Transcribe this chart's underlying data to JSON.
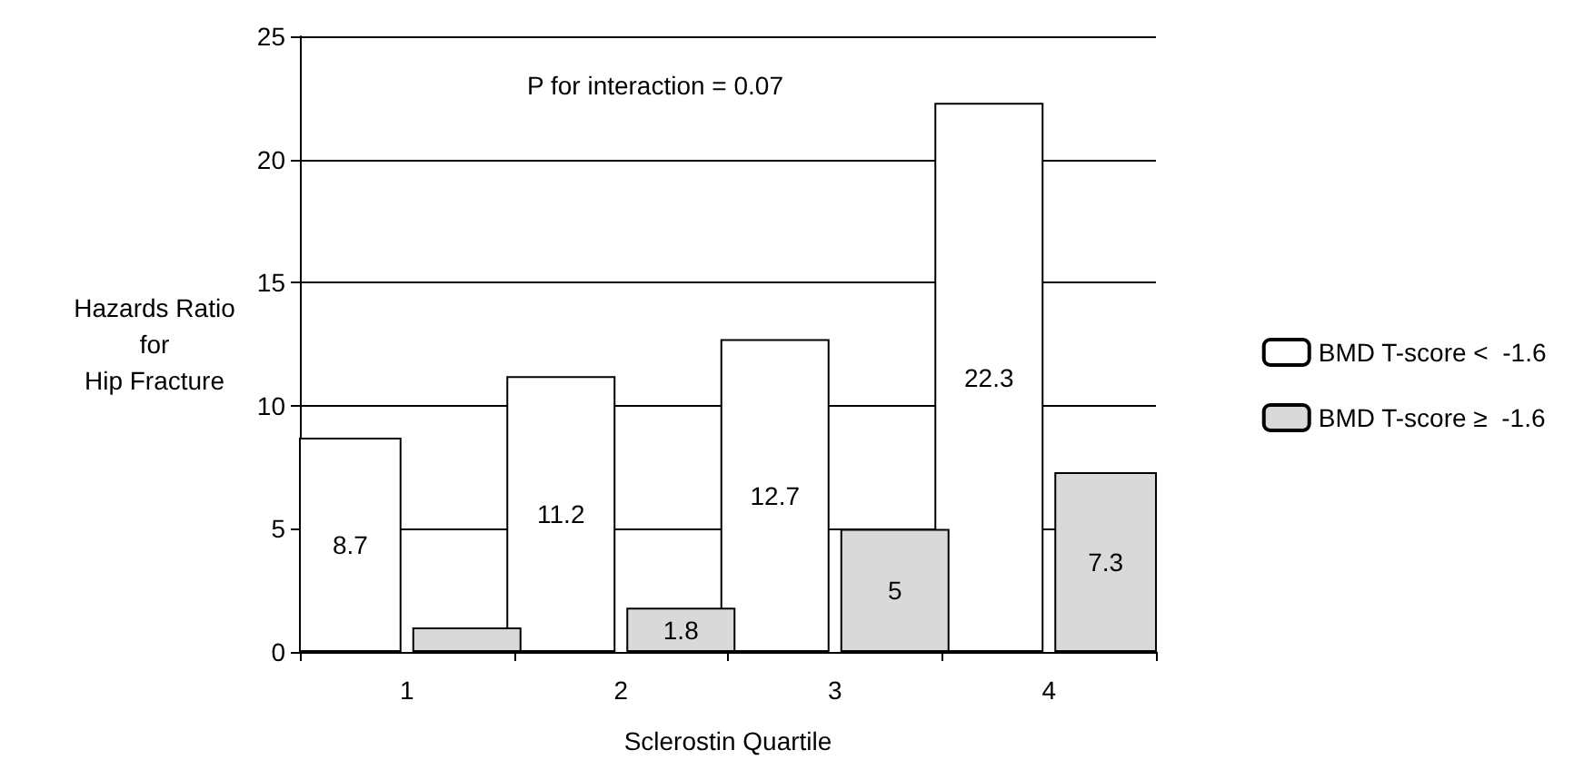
{
  "chart_data": {
    "type": "bar",
    "categories": [
      "1",
      "2",
      "3",
      "4"
    ],
    "series": [
      {
        "name": "BMD T-score <  -1.6",
        "color": "#ffffff",
        "values": [
          8.7,
          11.2,
          12.7,
          22.3
        ],
        "value_labels": [
          "8.7",
          "11.2",
          "12.7",
          "22.3"
        ]
      },
      {
        "name": "BMD T-score ≥  -1.6",
        "color": "#d9d9d9",
        "values": [
          1,
          1.8,
          5,
          7.3
        ],
        "value_labels": [
          null,
          "1.8",
          "5",
          "7.3"
        ]
      }
    ],
    "xlabel": "Sclerostin Quartile",
    "ylabel": "Hazards Ratio\nfor\nHip Fracture",
    "ylim": [
      0,
      25
    ],
    "yticks": [
      0,
      5,
      10,
      15,
      20,
      25
    ],
    "grid": "y",
    "legend": "right",
    "annotations": [
      "P for interaction = 0.07"
    ]
  }
}
